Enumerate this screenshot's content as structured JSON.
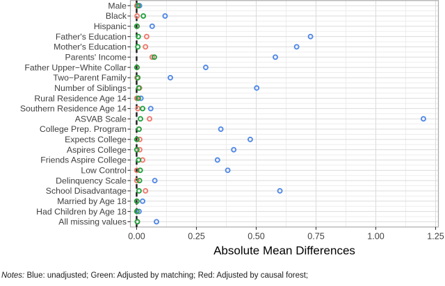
{
  "chart_data": {
    "type": "scatter",
    "title": "",
    "xlabel": "Absolute Mean Differences",
    "ylabel": "",
    "x_ticks": [
      0,
      0.25,
      0.5,
      0.75,
      1.0,
      1.25
    ],
    "x_tick_labels": [
      "0.00",
      "0.25",
      "0.50",
      "0.75",
      "1.00",
      "1.25"
    ],
    "xlim": [
      -0.028,
      1.29
    ],
    "grid": "major and minor, light gray, on white panel with gray border",
    "legend_position": "none (series identified in notes below figure)",
    "reference_line": {
      "x": 0.0,
      "style": "dashed",
      "color": "#1a1a1a"
    },
    "categories": [
      "Male",
      "Black",
      "Hispanic",
      "Father's Education",
      "Mother's Education",
      "Parents' Income",
      "Father Upper−White Collar",
      "Two−Parent Family",
      "Number of Siblings",
      "Rural Residence Age 14",
      "Southern Residence Age 14",
      "ASVAB Scale",
      "College Prep. Program",
      "Expects College",
      "Aspires College",
      "Friends Aspire College",
      "Low Control",
      "Delinquency Scale",
      "School Disadvantage",
      "Married by Age 18",
      "Had Children by Age 18",
      "All missing values"
    ],
    "series": [
      {
        "name": "unadjusted",
        "color_key": "blue",
        "values": [
          0.012,
          0.119,
          0.065,
          0.727,
          0.669,
          0.58,
          0.289,
          0.141,
          0.502,
          0.018,
          0.059,
          1.199,
          0.352,
          0.475,
          0.406,
          0.338,
          0.381,
          0.076,
          0.599,
          0.025,
          0.01,
          0.083
        ]
      },
      {
        "name": "Adjusted by causal forest",
        "color_key": "red",
        "values": [
          0.001,
          0.002,
          0.002,
          0.042,
          0.037,
          0.065,
          0.002,
          0.002,
          0.012,
          0.001,
          0.005,
          0.054,
          0.01,
          0.013,
          0.013,
          0.025,
          0.001,
          0.001,
          0.037,
          0.001,
          0.001,
          0.003
        ]
      },
      {
        "name": "Adjusted by matching",
        "color_key": "green",
        "values": [
          0.006,
          0.028,
          0.001,
          0.007,
          0.005,
          0.074,
          0.001,
          0.005,
          0.009,
          0.007,
          0.025,
          0.016,
          0.01,
          0.001,
          0.001,
          0.008,
          0.015,
          0.012,
          0.01,
          0.001,
          0.001,
          0.003
        ]
      }
    ]
  },
  "colors": {
    "blue": "#4f87e8",
    "red": "#f0766b",
    "green": "#1fa23c",
    "grid_major": "#dbdbdb",
    "grid_minor": "#ededed",
    "panel_border": "#a9a9a9",
    "axis_text": "#404040",
    "axis_title": "#000000",
    "tick_mark": "#333333"
  },
  "notes": {
    "label": "Notes:",
    "text": " Blue: unadjusted; Green: Adjusted by matching; Red: Adjusted by causal forest;"
  }
}
